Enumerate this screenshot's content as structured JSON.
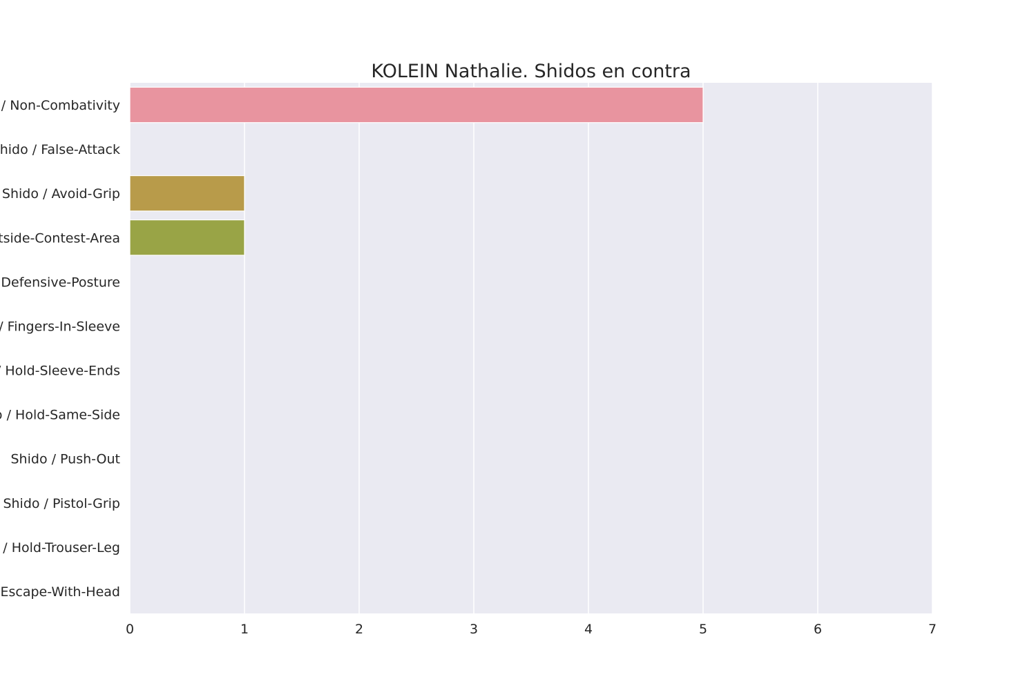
{
  "chart_data": {
    "type": "bar",
    "orientation": "horizontal",
    "title": "KOLEIN Nathalie. Shidos en contra",
    "xlabel": "",
    "ylabel": "",
    "xlim": [
      0,
      7
    ],
    "x_ticks": [
      0,
      1,
      2,
      3,
      4,
      5,
      6,
      7
    ],
    "grid": true,
    "categories": [
      "Shido / Non-Combativity",
      "Shido / False-Attack",
      "Shido / Avoid-Grip",
      "Shido / Outside-Contest-Area",
      "Shido / Defensive-Posture",
      "Shido / Fingers-In-Sleeve",
      "Shido / Hold-Sleeve-Ends",
      "Shido / Hold-Same-Side",
      "Shido / Push-Out",
      "Shido / Pistol-Grip",
      "Shido / Hold-Trouser-Leg",
      "Shido / Escape-With-Head"
    ],
    "values": [
      5,
      0,
      1,
      1,
      0,
      0,
      0,
      0,
      0,
      0,
      0,
      0
    ],
    "colors": [
      "#e8949f",
      "#e09a7e",
      "#b89b4a",
      "#99a446",
      "#6dae4c",
      "#4fb08a",
      "#4bab9f",
      "#4ba8b6",
      "#5aa2d6",
      "#9a97e0",
      "#cf86d6",
      "#e588b8"
    ],
    "plot_bg": "#eaeaf2",
    "grid_color": "#ffffff"
  }
}
